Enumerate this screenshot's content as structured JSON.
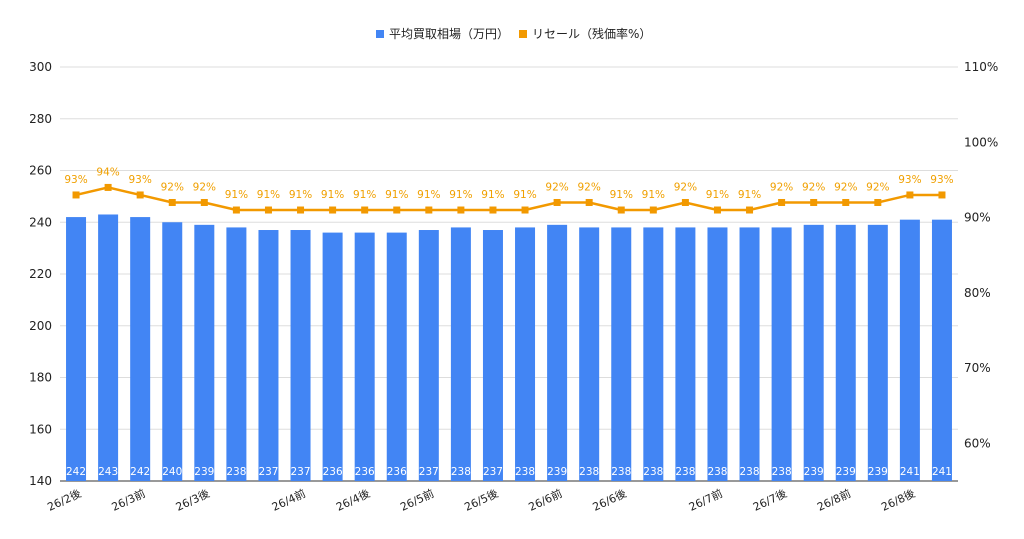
{
  "chart_data": {
    "type": "bar",
    "legend": {
      "placement": "top-center",
      "items": [
        {
          "label": "平均買取相場（万円）",
          "color": "#4285f4",
          "shape": "square"
        },
        {
          "label": "リセール（残価率%）",
          "color": "#f29900",
          "shape": "square"
        }
      ]
    },
    "categories": [
      "26/2後",
      "",
      "26/3前",
      "",
      "26/3後",
      "",
      "",
      "26/4前",
      "",
      "26/4後",
      "",
      "26/5前",
      "",
      "26/5後",
      "",
      "26/6前",
      "",
      "26/6後",
      "",
      "",
      "26/7前",
      "",
      "26/7後",
      "",
      "26/8前",
      "",
      "26/8後",
      ""
    ],
    "series": [
      {
        "name": "平均買取相場（万円）",
        "type": "bar",
        "axis": "left",
        "color": "#4285f4",
        "values": [
          242,
          243,
          242,
          240,
          239,
          238,
          237,
          237,
          236,
          236,
          236,
          237,
          238,
          237,
          238,
          239,
          238,
          238,
          238,
          238,
          238,
          238,
          238,
          239,
          239,
          239,
          241,
          241
        ],
        "labels": [
          "242",
          "243",
          "242",
          "240",
          "239",
          "238",
          "237",
          "237",
          "236",
          "236",
          "236",
          "237",
          "238",
          "237",
          "238",
          "239",
          "238",
          "238",
          "238",
          "238",
          "238",
          "238",
          "238",
          "239",
          "239",
          "239",
          "241",
          "241"
        ]
      },
      {
        "name": "リセール（残価率%）",
        "type": "line",
        "axis": "right",
        "color": "#f29900",
        "values": [
          93,
          94,
          93,
          92,
          92,
          91,
          91,
          91,
          91,
          91,
          91,
          91,
          91,
          91,
          91,
          92,
          92,
          91,
          91,
          92,
          91,
          91,
          92,
          92,
          92,
          92,
          93,
          93
        ],
        "labels": [
          "93%",
          "94%",
          "93%",
          "92%",
          "92%",
          "91%",
          "91%",
          "91%",
          "91%",
          "91%",
          "91%",
          "91%",
          "91%",
          "91%",
          "91%",
          "92%",
          "92%",
          "91%",
          "91%",
          "92%",
          "91%",
          "91%",
          "92%",
          "92%",
          "92%",
          "92%",
          "93%",
          "93%"
        ]
      }
    ],
    "y_left": {
      "min": 140,
      "max": 300,
      "ticks": [
        "140",
        "160",
        "180",
        "200",
        "220",
        "240",
        "260",
        "280",
        "300"
      ]
    },
    "y_right": {
      "min": 55,
      "max": 110,
      "ticks": [
        "60%",
        "70%",
        "80%",
        "90%",
        "100%",
        "110%"
      ],
      "tick_values": [
        60,
        70,
        80,
        90,
        100,
        110
      ]
    },
    "grid": true
  }
}
